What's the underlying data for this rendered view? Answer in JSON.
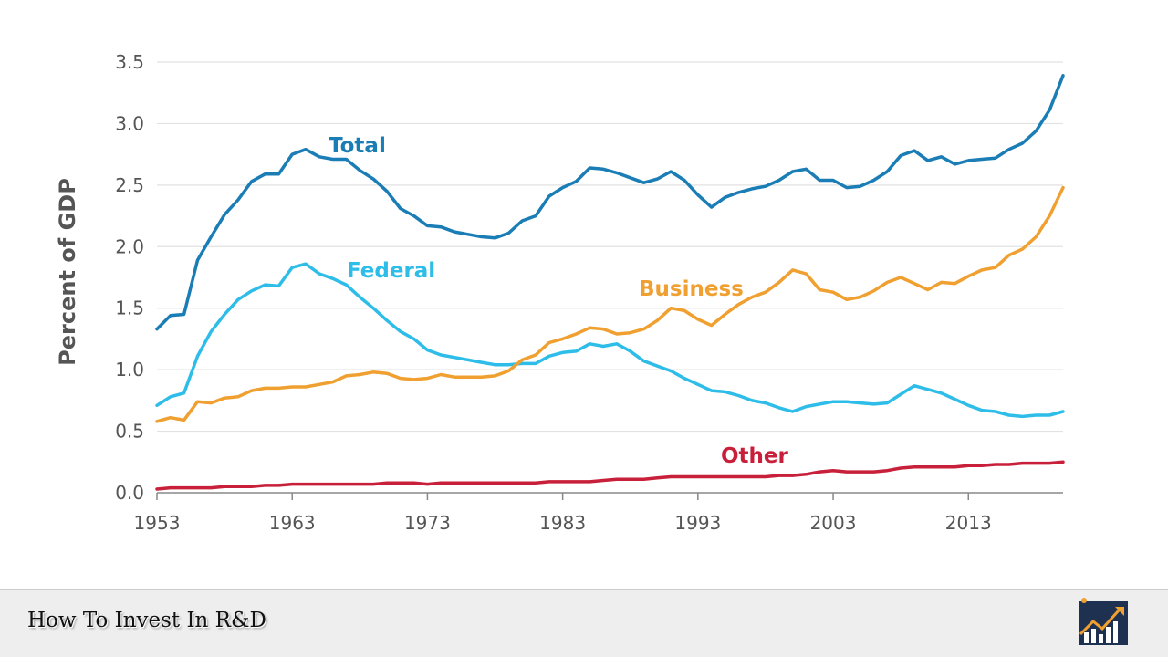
{
  "chart_data": {
    "type": "line",
    "ylabel": "Percent of GDP",
    "ylim": [
      0,
      3.5
    ],
    "yticks": [
      "0.0",
      "0.5",
      "1.0",
      "1.5",
      "2.0",
      "2.5",
      "3.0",
      "3.5"
    ],
    "xlim": [
      1953,
      2020
    ],
    "xticks": [
      "1953",
      "1963",
      "1973",
      "1983",
      "1993",
      "2003",
      "2013"
    ],
    "grid": "horizontal",
    "series": [
      {
        "name": "Total",
        "color": "#1a7db5",
        "points": [
          [
            1953,
            1.33
          ],
          [
            1954,
            1.44
          ],
          [
            1955,
            1.45
          ],
          [
            1956,
            1.89
          ],
          [
            1957,
            2.08
          ],
          [
            1958,
            2.26
          ],
          [
            1959,
            2.38
          ],
          [
            1960,
            2.53
          ],
          [
            1961,
            2.59
          ],
          [
            1962,
            2.59
          ],
          [
            1963,
            2.75
          ],
          [
            1964,
            2.79
          ],
          [
            1965,
            2.73
          ],
          [
            1966,
            2.71
          ],
          [
            1967,
            2.71
          ],
          [
            1968,
            2.62
          ],
          [
            1969,
            2.55
          ],
          [
            1970,
            2.45
          ],
          [
            1971,
            2.31
          ],
          [
            1972,
            2.25
          ],
          [
            1973,
            2.17
          ],
          [
            1974,
            2.16
          ],
          [
            1975,
            2.12
          ],
          [
            1976,
            2.1
          ],
          [
            1977,
            2.08
          ],
          [
            1978,
            2.07
          ],
          [
            1979,
            2.11
          ],
          [
            1980,
            2.21
          ],
          [
            1981,
            2.25
          ],
          [
            1982,
            2.41
          ],
          [
            1983,
            2.48
          ],
          [
            1984,
            2.53
          ],
          [
            1985,
            2.64
          ],
          [
            1986,
            2.63
          ],
          [
            1987,
            2.6
          ],
          [
            1988,
            2.56
          ],
          [
            1989,
            2.52
          ],
          [
            1990,
            2.55
          ],
          [
            1991,
            2.61
          ],
          [
            1992,
            2.54
          ],
          [
            1993,
            2.42
          ],
          [
            1994,
            2.32
          ],
          [
            1995,
            2.4
          ],
          [
            1996,
            2.44
          ],
          [
            1997,
            2.47
          ],
          [
            1998,
            2.49
          ],
          [
            1999,
            2.54
          ],
          [
            2000,
            2.61
          ],
          [
            2001,
            2.63
          ],
          [
            2002,
            2.54
          ],
          [
            2003,
            2.54
          ],
          [
            2004,
            2.48
          ],
          [
            2005,
            2.49
          ],
          [
            2006,
            2.54
          ],
          [
            2007,
            2.61
          ],
          [
            2008,
            2.74
          ],
          [
            2009,
            2.78
          ],
          [
            2010,
            2.7
          ],
          [
            2011,
            2.73
          ],
          [
            2012,
            2.67
          ],
          [
            2013,
            2.7
          ],
          [
            2014,
            2.71
          ],
          [
            2015,
            2.72
          ],
          [
            2016,
            2.79
          ],
          [
            2017,
            2.84
          ],
          [
            2018,
            2.94
          ],
          [
            2019,
            3.11
          ],
          [
            2020,
            3.39
          ]
        ]
      },
      {
        "name": "Federal",
        "color": "#2dbde8",
        "points": [
          [
            1953,
            0.71
          ],
          [
            1954,
            0.78
          ],
          [
            1955,
            0.81
          ],
          [
            1956,
            1.11
          ],
          [
            1957,
            1.31
          ],
          [
            1958,
            1.45
          ],
          [
            1959,
            1.57
          ],
          [
            1960,
            1.64
          ],
          [
            1961,
            1.69
          ],
          [
            1962,
            1.68
          ],
          [
            1963,
            1.83
          ],
          [
            1964,
            1.86
          ],
          [
            1965,
            1.78
          ],
          [
            1966,
            1.74
          ],
          [
            1967,
            1.69
          ],
          [
            1968,
            1.59
          ],
          [
            1969,
            1.5
          ],
          [
            1970,
            1.4
          ],
          [
            1971,
            1.31
          ],
          [
            1972,
            1.25
          ],
          [
            1973,
            1.16
          ],
          [
            1974,
            1.12
          ],
          [
            1975,
            1.1
          ],
          [
            1976,
            1.08
          ],
          [
            1977,
            1.06
          ],
          [
            1978,
            1.04
          ],
          [
            1979,
            1.04
          ],
          [
            1980,
            1.05
          ],
          [
            1981,
            1.05
          ],
          [
            1982,
            1.11
          ],
          [
            1983,
            1.14
          ],
          [
            1984,
            1.15
          ],
          [
            1985,
            1.21
          ],
          [
            1986,
            1.19
          ],
          [
            1987,
            1.21
          ],
          [
            1988,
            1.15
          ],
          [
            1989,
            1.07
          ],
          [
            1990,
            1.03
          ],
          [
            1991,
            0.99
          ],
          [
            1992,
            0.93
          ],
          [
            1993,
            0.88
          ],
          [
            1994,
            0.83
          ],
          [
            1995,
            0.82
          ],
          [
            1996,
            0.79
          ],
          [
            1997,
            0.75
          ],
          [
            1998,
            0.73
          ],
          [
            1999,
            0.69
          ],
          [
            2000,
            0.66
          ],
          [
            2001,
            0.7
          ],
          [
            2002,
            0.72
          ],
          [
            2003,
            0.74
          ],
          [
            2004,
            0.74
          ],
          [
            2005,
            0.73
          ],
          [
            2006,
            0.72
          ],
          [
            2007,
            0.73
          ],
          [
            2008,
            0.8
          ],
          [
            2009,
            0.87
          ],
          [
            2010,
            0.84
          ],
          [
            2011,
            0.81
          ],
          [
            2012,
            0.76
          ],
          [
            2013,
            0.71
          ],
          [
            2014,
            0.67
          ],
          [
            2015,
            0.66
          ],
          [
            2016,
            0.63
          ],
          [
            2017,
            0.62
          ],
          [
            2018,
            0.63
          ],
          [
            2019,
            0.63
          ],
          [
            2020,
            0.66
          ]
        ]
      },
      {
        "name": "Business",
        "color": "#f0a030",
        "points": [
          [
            1953,
            0.58
          ],
          [
            1954,
            0.61
          ],
          [
            1955,
            0.59
          ],
          [
            1956,
            0.74
          ],
          [
            1957,
            0.73
          ],
          [
            1958,
            0.77
          ],
          [
            1959,
            0.78
          ],
          [
            1960,
            0.83
          ],
          [
            1961,
            0.85
          ],
          [
            1962,
            0.85
          ],
          [
            1963,
            0.86
          ],
          [
            1964,
            0.86
          ],
          [
            1965,
            0.88
          ],
          [
            1966,
            0.9
          ],
          [
            1967,
            0.95
          ],
          [
            1968,
            0.96
          ],
          [
            1969,
            0.98
          ],
          [
            1970,
            0.97
          ],
          [
            1971,
            0.93
          ],
          [
            1972,
            0.92
          ],
          [
            1973,
            0.93
          ],
          [
            1974,
            0.96
          ],
          [
            1975,
            0.94
          ],
          [
            1976,
            0.94
          ],
          [
            1977,
            0.94
          ],
          [
            1978,
            0.95
          ],
          [
            1979,
            0.99
          ],
          [
            1980,
            1.08
          ],
          [
            1981,
            1.12
          ],
          [
            1982,
            1.22
          ],
          [
            1983,
            1.25
          ],
          [
            1984,
            1.29
          ],
          [
            1985,
            1.34
          ],
          [
            1986,
            1.33
          ],
          [
            1987,
            1.29
          ],
          [
            1988,
            1.3
          ],
          [
            1989,
            1.33
          ],
          [
            1990,
            1.4
          ],
          [
            1991,
            1.5
          ],
          [
            1992,
            1.48
          ],
          [
            1993,
            1.41
          ],
          [
            1994,
            1.36
          ],
          [
            1995,
            1.45
          ],
          [
            1996,
            1.53
          ],
          [
            1997,
            1.59
          ],
          [
            1998,
            1.63
          ],
          [
            1999,
            1.71
          ],
          [
            2000,
            1.81
          ],
          [
            2001,
            1.78
          ],
          [
            2002,
            1.65
          ],
          [
            2003,
            1.63
          ],
          [
            2004,
            1.57
          ],
          [
            2005,
            1.59
          ],
          [
            2006,
            1.64
          ],
          [
            2007,
            1.71
          ],
          [
            2008,
            1.75
          ],
          [
            2009,
            1.7
          ],
          [
            2010,
            1.65
          ],
          [
            2011,
            1.71
          ],
          [
            2012,
            1.7
          ],
          [
            2013,
            1.76
          ],
          [
            2014,
            1.81
          ],
          [
            2015,
            1.83
          ],
          [
            2016,
            1.93
          ],
          [
            2017,
            1.98
          ],
          [
            2018,
            2.08
          ],
          [
            2019,
            2.25
          ],
          [
            2020,
            2.48
          ]
        ]
      },
      {
        "name": "Other",
        "color": "#c8203a",
        "points": [
          [
            1953,
            0.03
          ],
          [
            1954,
            0.04
          ],
          [
            1955,
            0.04
          ],
          [
            1956,
            0.04
          ],
          [
            1957,
            0.04
          ],
          [
            1958,
            0.05
          ],
          [
            1959,
            0.05
          ],
          [
            1960,
            0.05
          ],
          [
            1961,
            0.06
          ],
          [
            1962,
            0.06
          ],
          [
            1963,
            0.07
          ],
          [
            1964,
            0.07
          ],
          [
            1965,
            0.07
          ],
          [
            1966,
            0.07
          ],
          [
            1967,
            0.07
          ],
          [
            1968,
            0.07
          ],
          [
            1969,
            0.07
          ],
          [
            1970,
            0.08
          ],
          [
            1971,
            0.08
          ],
          [
            1972,
            0.08
          ],
          [
            1973,
            0.07
          ],
          [
            1974,
            0.08
          ],
          [
            1975,
            0.08
          ],
          [
            1976,
            0.08
          ],
          [
            1977,
            0.08
          ],
          [
            1978,
            0.08
          ],
          [
            1979,
            0.08
          ],
          [
            1980,
            0.08
          ],
          [
            1981,
            0.08
          ],
          [
            1982,
            0.09
          ],
          [
            1983,
            0.09
          ],
          [
            1984,
            0.09
          ],
          [
            1985,
            0.09
          ],
          [
            1986,
            0.1
          ],
          [
            1987,
            0.11
          ],
          [
            1988,
            0.11
          ],
          [
            1989,
            0.11
          ],
          [
            1990,
            0.12
          ],
          [
            1991,
            0.13
          ],
          [
            1992,
            0.13
          ],
          [
            1993,
            0.13
          ],
          [
            1994,
            0.13
          ],
          [
            1995,
            0.13
          ],
          [
            1996,
            0.13
          ],
          [
            1997,
            0.13
          ],
          [
            1998,
            0.13
          ],
          [
            1999,
            0.14
          ],
          [
            2000,
            0.14
          ],
          [
            2001,
            0.15
          ],
          [
            2002,
            0.17
          ],
          [
            2003,
            0.18
          ],
          [
            2004,
            0.17
          ],
          [
            2005,
            0.17
          ],
          [
            2006,
            0.17
          ],
          [
            2007,
            0.18
          ],
          [
            2008,
            0.2
          ],
          [
            2009,
            0.21
          ],
          [
            2010,
            0.21
          ],
          [
            2011,
            0.21
          ],
          [
            2012,
            0.21
          ],
          [
            2013,
            0.22
          ],
          [
            2014,
            0.22
          ],
          [
            2015,
            0.23
          ],
          [
            2016,
            0.23
          ],
          [
            2017,
            0.24
          ],
          [
            2018,
            0.24
          ],
          [
            2019,
            0.24
          ],
          [
            2020,
            0.25
          ]
        ]
      }
    ]
  },
  "footer": {
    "title": "How To Invest In R&D",
    "logo_icon": "growth-chart-logo-icon"
  }
}
